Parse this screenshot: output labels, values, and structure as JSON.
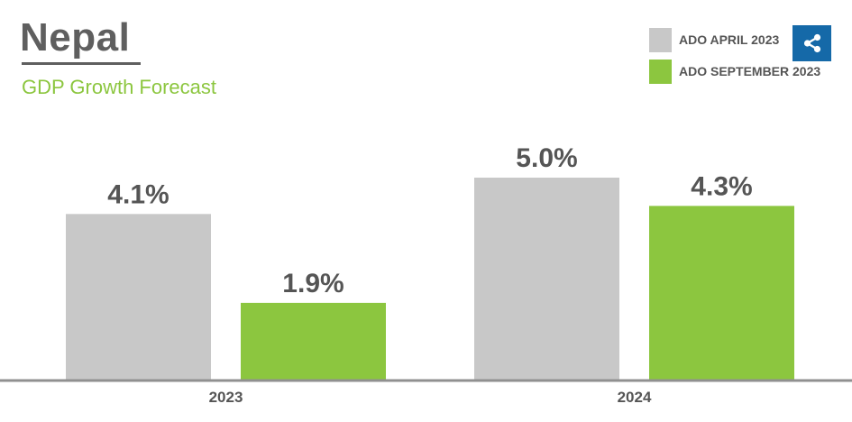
{
  "header": {
    "title": "Nepal",
    "subtitle": "GDP Growth Forecast"
  },
  "legend": {
    "items": [
      {
        "label": "ADO APRIL 2023",
        "color": "#c8c8c8"
      },
      {
        "label": "ADO SEPTEMBER 2023",
        "color": "#8cc63f"
      }
    ]
  },
  "share": {
    "icon": "share-icon"
  },
  "chart_data": {
    "type": "bar",
    "categories": [
      "2023",
      "2024"
    ],
    "series": [
      {
        "name": "ADO APRIL 2023",
        "values": [
          4.1,
          5.0
        ],
        "labels": [
          "4.1%",
          "5.0%"
        ],
        "color": "#c8c8c8"
      },
      {
        "name": "ADO SEPTEMBER 2023",
        "values": [
          1.9,
          4.3
        ],
        "labels": [
          "1.9%",
          "4.3%"
        ],
        "color": "#8cc63f"
      }
    ],
    "ylim": [
      0,
      5.0
    ],
    "grid": false,
    "legend_position": "top-right"
  }
}
